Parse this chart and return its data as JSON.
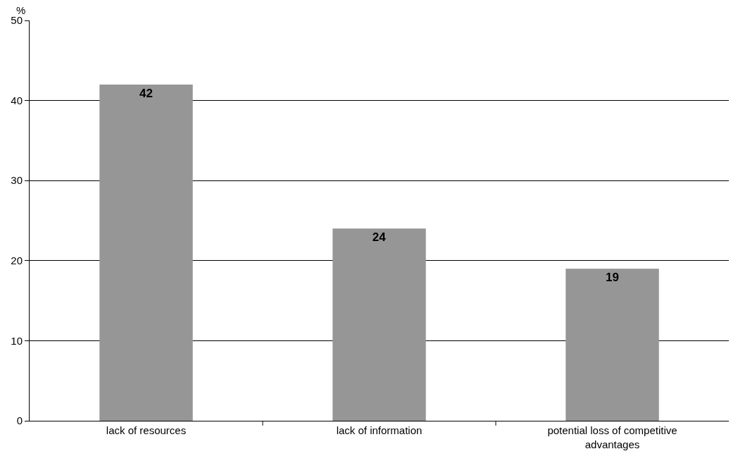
{
  "chart_data": {
    "type": "bar",
    "ylabel": "%",
    "categories": [
      "lack of resources",
      "lack of information",
      "potential loss of competitive advantages"
    ],
    "values": [
      42,
      24,
      19
    ],
    "color": "#969696",
    "data_labels": true,
    "ylim": [
      0,
      50
    ],
    "yticks": [
      0,
      10,
      20,
      30,
      40,
      50
    ],
    "grid": "y",
    "legend": false
  }
}
